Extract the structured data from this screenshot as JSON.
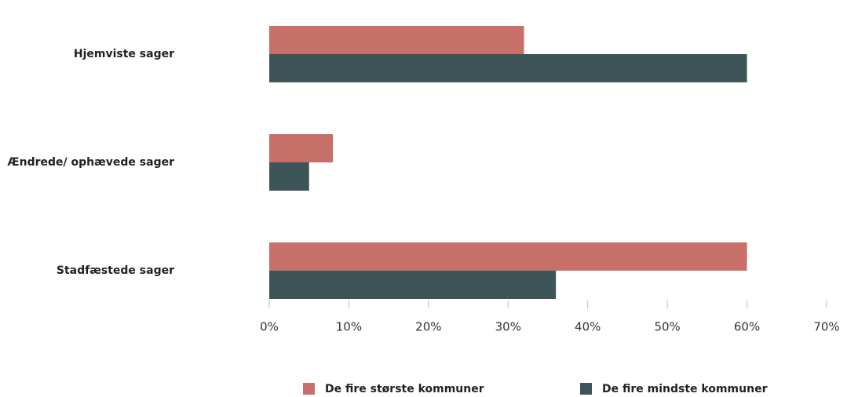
{
  "chart_data": {
    "type": "bar",
    "orientation": "horizontal",
    "categories": [
      "Hjemviste sager",
      "Ændrede/ ophævede sager",
      "Stadfæstede sager"
    ],
    "series": [
      {
        "name": "De fire største kommuner",
        "color": "#c76f69",
        "values": [
          32,
          8,
          60
        ]
      },
      {
        "name": "De fire mindste kommuner",
        "color": "#3d5558",
        "values": [
          60,
          5,
          36
        ]
      }
    ],
    "xlim": [
      0,
      70
    ],
    "xticks": [
      {
        "value": 0,
        "label": "0%"
      },
      {
        "value": 10,
        "label": "10%"
      },
      {
        "value": 20,
        "label": "20%"
      },
      {
        "value": 30,
        "label": "30%"
      },
      {
        "value": 40,
        "label": "40%"
      },
      {
        "value": 50,
        "label": "50%"
      },
      {
        "value": 60,
        "label": "60%"
      },
      {
        "value": 70,
        "label": "70%"
      }
    ],
    "legend": "bottom"
  }
}
